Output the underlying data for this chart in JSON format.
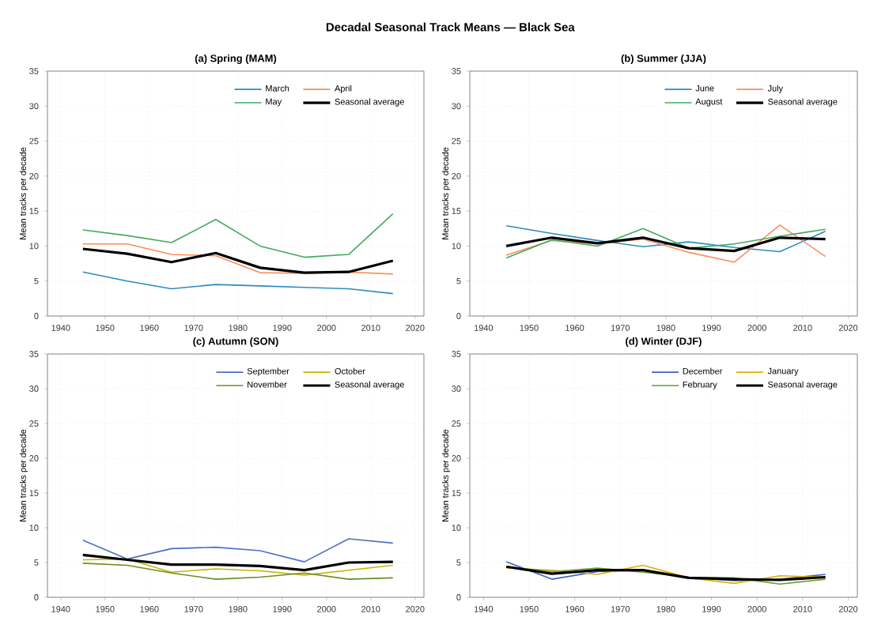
{
  "chart_data": [
    {
      "type": "line",
      "title": "(a) Spring (MAM)",
      "ylabel": "Mean tracks per decade",
      "annotations": [
        "Decadal Seasonal Track Means — Black Sea"
      ],
      "x": [
        1945,
        1955,
        1965,
        1975,
        1985,
        1995,
        2005,
        2015
      ],
      "xlim": [
        1937,
        2022
      ],
      "xticks": [
        1940,
        1950,
        1960,
        1970,
        1980,
        1990,
        2000,
        2010,
        2020
      ],
      "ylim": [
        0,
        35
      ],
      "yticks": [
        0,
        5,
        10,
        15,
        20,
        25,
        30,
        35
      ],
      "grid": true,
      "legend": "top right",
      "line_style": "solid",
      "series": [
        {
          "name": "March",
          "color": "#2b8cbe",
          "values": [
            6.3,
            5.0,
            3.9,
            4.5,
            4.3,
            4.1,
            3.9,
            3.2
          ]
        },
        {
          "name": "April",
          "color": "#fc8d59",
          "values": [
            10.3,
            10.3,
            8.8,
            8.6,
            6.2,
            6.1,
            6.3,
            6.0
          ]
        },
        {
          "name": "May",
          "color": "#41ab5d",
          "values": [
            12.3,
            11.5,
            10.5,
            13.8,
            10.0,
            8.4,
            8.8,
            14.6
          ]
        },
        {
          "name": "Seasonal average",
          "color": "#000000",
          "values": [
            9.6,
            8.9,
            7.7,
            9.0,
            6.9,
            6.2,
            6.3,
            7.9
          ]
        }
      ]
    },
    {
      "type": "line",
      "title": "(b) Summer (JJA)",
      "ylabel": "Mean tracks per decade",
      "x": [
        1945,
        1955,
        1965,
        1975,
        1985,
        1995,
        2005,
        2015
      ],
      "xlim": [
        1937,
        2022
      ],
      "xticks": [
        1940,
        1950,
        1960,
        1970,
        1980,
        1990,
        2000,
        2010,
        2020
      ],
      "ylim": [
        0,
        35
      ],
      "yticks": [
        0,
        5,
        10,
        15,
        20,
        25,
        30,
        35
      ],
      "grid": true,
      "legend": "top right",
      "line_style": "solid",
      "series": [
        {
          "name": "June",
          "color": "#2b8cbe",
          "values": [
            12.9,
            11.8,
            10.8,
            9.9,
            10.6,
            9.8,
            9.2,
            12.1
          ]
        },
        {
          "name": "July",
          "color": "#fc8d59",
          "values": [
            8.7,
            10.8,
            10.3,
            11.0,
            9.1,
            7.7,
            13.0,
            8.5
          ]
        },
        {
          "name": "August",
          "color": "#41ab5d",
          "values": [
            8.3,
            10.9,
            10.0,
            12.5,
            9.7,
            10.3,
            11.4,
            12.4
          ]
        },
        {
          "name": "Seasonal average",
          "color": "#000000",
          "values": [
            10.0,
            11.2,
            10.4,
            11.2,
            9.7,
            9.3,
            11.2,
            11.0
          ]
        }
      ]
    },
    {
      "type": "line",
      "title": "(c) Autumn (SON)",
      "ylabel": "Mean tracks per decade",
      "x": [
        1945,
        1955,
        1965,
        1975,
        1985,
        1995,
        2005,
        2015
      ],
      "xlim": [
        1937,
        2022
      ],
      "xticks": [
        1940,
        1950,
        1960,
        1970,
        1980,
        1990,
        2000,
        2010,
        2020
      ],
      "ylim": [
        0,
        35
      ],
      "yticks": [
        0,
        5,
        10,
        15,
        20,
        25,
        30,
        35
      ],
      "grid": true,
      "legend": "top right",
      "line_style": "solid",
      "series": [
        {
          "name": "September",
          "color": "#4f6fc0",
          "values": [
            8.2,
            5.5,
            7.0,
            7.2,
            6.7,
            5.1,
            8.4,
            7.8
          ]
        },
        {
          "name": "October",
          "color": "#c8b400",
          "values": [
            5.4,
            5.5,
            3.6,
            4.1,
            3.8,
            3.2,
            3.9,
            4.6
          ]
        },
        {
          "name": "November",
          "color": "#6b8e23",
          "values": [
            4.9,
            4.6,
            3.5,
            2.6,
            2.9,
            3.5,
            2.6,
            2.8
          ]
        },
        {
          "name": "Seasonal average",
          "color": "#000000",
          "values": [
            6.1,
            5.4,
            4.7,
            4.7,
            4.5,
            3.9,
            5.0,
            5.1
          ]
        }
      ]
    },
    {
      "type": "line",
      "title": "(d) Winter (DJF)",
      "ylabel": "Mean tracks per decade",
      "x": [
        1945,
        1955,
        1965,
        1975,
        1985,
        1995,
        2005,
        2015
      ],
      "xlim": [
        1937,
        2022
      ],
      "xticks": [
        1940,
        1950,
        1960,
        1970,
        1980,
        1990,
        2000,
        2010,
        2020
      ],
      "ylim": [
        0,
        35
      ],
      "yticks": [
        0,
        5,
        10,
        15,
        20,
        25,
        30,
        35
      ],
      "grid": true,
      "legend": "top right",
      "line_style": "solid",
      "series": [
        {
          "name": "December",
          "color": "#4060c8",
          "values": [
            5.1,
            2.6,
            3.7,
            3.9,
            2.9,
            2.4,
            2.6,
            3.3
          ]
        },
        {
          "name": "January",
          "color": "#e0b000",
          "values": [
            4.2,
            3.9,
            3.3,
            4.6,
            2.8,
            2.0,
            3.1,
            2.9
          ]
        },
        {
          "name": "February",
          "color": "#6a9a30",
          "values": [
            4.4,
            3.7,
            4.2,
            3.6,
            2.9,
            2.8,
            1.9,
            2.6
          ]
        },
        {
          "name": "Seasonal average",
          "color": "#000000",
          "values": [
            4.4,
            3.4,
            3.9,
            3.9,
            2.8,
            2.6,
            2.5,
            2.9
          ]
        }
      ]
    }
  ]
}
